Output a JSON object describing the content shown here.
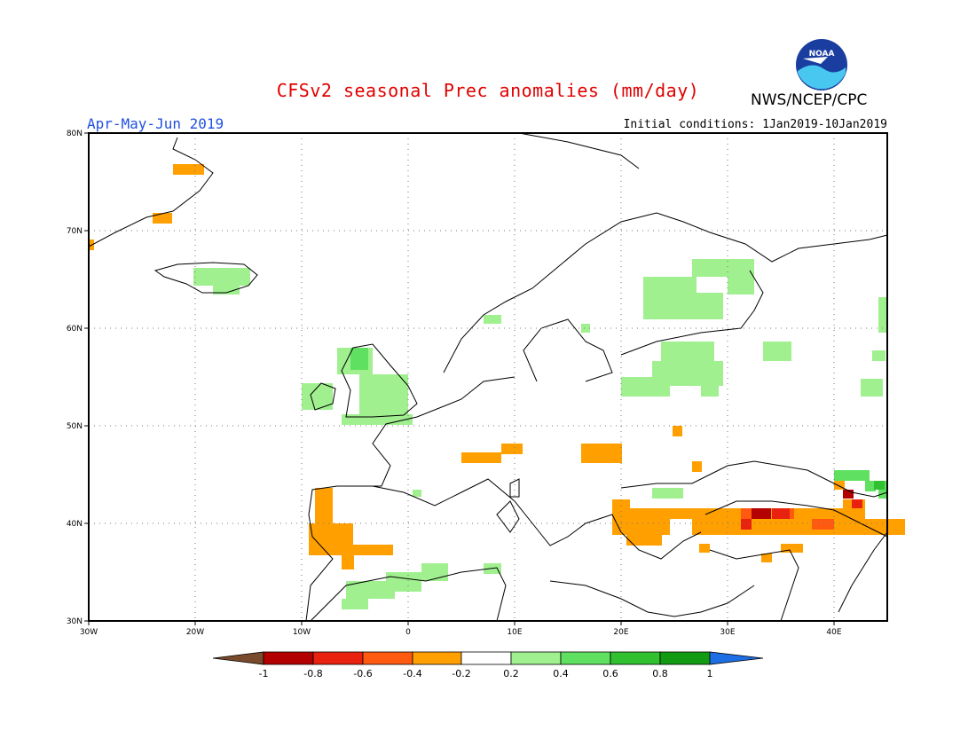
{
  "header": {
    "title": "CFSv2 seasonal Prec anomalies (mm/day)",
    "agency": "NWS/NCEP/CPC",
    "logo_text": "NOAA",
    "season": "Apr-May-Jun 2019",
    "initial_conditions": "Initial conditions: 1Jan2019-10Jan2019"
  },
  "map": {
    "extent": {
      "lon": [
        -30,
        45
      ],
      "lat": [
        30,
        80
      ]
    },
    "lat_ticks": [
      "80N",
      "70N",
      "60N",
      "50N",
      "40N",
      "30N"
    ],
    "lon_ticks": [
      "30W",
      "20W",
      "10W",
      "0",
      "10E",
      "20E",
      "30E",
      "40E"
    ],
    "grid": "dotted"
  },
  "legend": {
    "labels": [
      "-1",
      "-0.8",
      "-0.6",
      "-0.4",
      "-0.2",
      "0.2",
      "0.4",
      "0.6",
      "0.8",
      "1"
    ],
    "colors": [
      "#7a4a2c",
      "#b30000",
      "#e8220e",
      "#ff5a10",
      "#ffa000",
      "#ffffff",
      "#a0f090",
      "#60e060",
      "#30c030",
      "#129a12",
      "#1e6ee6"
    ]
  },
  "colors": {
    "land_outline": "#000000",
    "dry_light": "#ffa000",
    "dry_mid": "#ff5a10",
    "dry_strong": "#e8220e",
    "dry_extreme": "#b30000",
    "wet_light": "#a0f090",
    "wet_mid": "#60e060",
    "wet_strong": "#30c030"
  }
}
